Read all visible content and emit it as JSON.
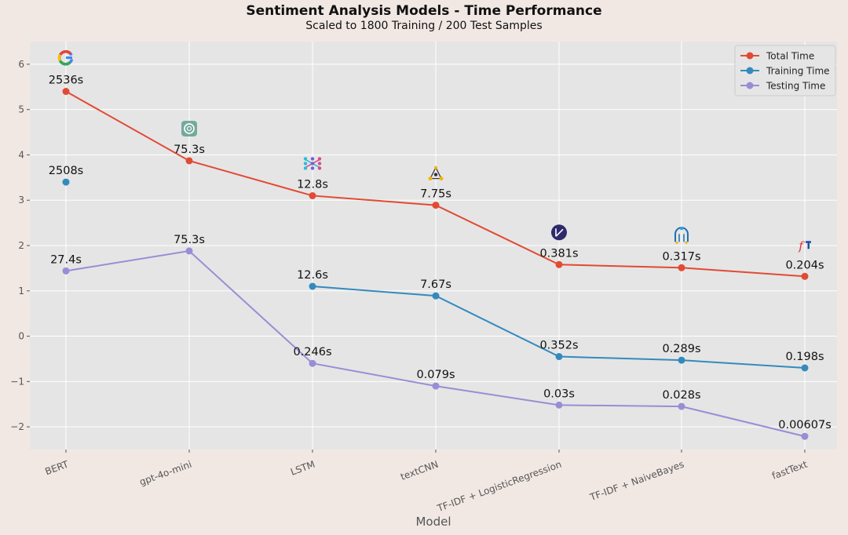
{
  "chart_data": {
    "type": "line",
    "title": "Sentiment Analysis Models - Time Performance",
    "subtitle": "Scaled to 1800 Training / 200 Test Samples",
    "xlabel": "Model",
    "ylabel": "",
    "ylim": [
      -2.5,
      6.5
    ],
    "yticks": [
      -2,
      -1,
      0,
      1,
      2,
      3,
      4,
      5,
      6
    ],
    "grid": true,
    "legend_position": "top-right",
    "categories": [
      "BERT",
      "gpt-4o-mini",
      "LSTM",
      "textCNN",
      "TF-IDF + LogisticRegression",
      "TF-IDF + NaiveBayes",
      "fastText"
    ],
    "series": [
      {
        "name": "Total Time",
        "color": "#e24a33",
        "values": [
          5.4,
          3.87,
          3.1,
          2.89,
          1.58,
          1.51,
          1.32
        ],
        "labels": [
          "2536s",
          "75.3s",
          "12.8s",
          "7.75s",
          "0.381s",
          "0.317s",
          "0.204s"
        ]
      },
      {
        "name": "Training Time",
        "color": "#348abd",
        "values": [
          3.4,
          null,
          1.1,
          0.89,
          -0.45,
          -0.53,
          -0.7
        ],
        "labels": [
          "2508s",
          null,
          "12.6s",
          "7.67s",
          "0.352s",
          "0.289s",
          "0.198s"
        ]
      },
      {
        "name": "Testing Time",
        "color": "#988ed5",
        "values": [
          1.44,
          1.88,
          -0.6,
          -1.1,
          -1.52,
          -1.55,
          -2.21
        ],
        "labels": [
          "27.4s",
          "75.3s",
          "0.246s",
          "0.079s",
          "0.03s",
          "0.028s",
          "0.00607s"
        ]
      }
    ],
    "icons": [
      "google-logo-icon",
      "openai-logo-icon",
      "neural-network-icon",
      "cnn-network-icon",
      "scikit-learn-icon",
      "naive-bayes-icon",
      "fasttext-logo-icon"
    ],
    "colors": {
      "page_background": "#f1e8e4",
      "plot_background": "#e5e5e5",
      "grid": "#ffffff"
    }
  }
}
